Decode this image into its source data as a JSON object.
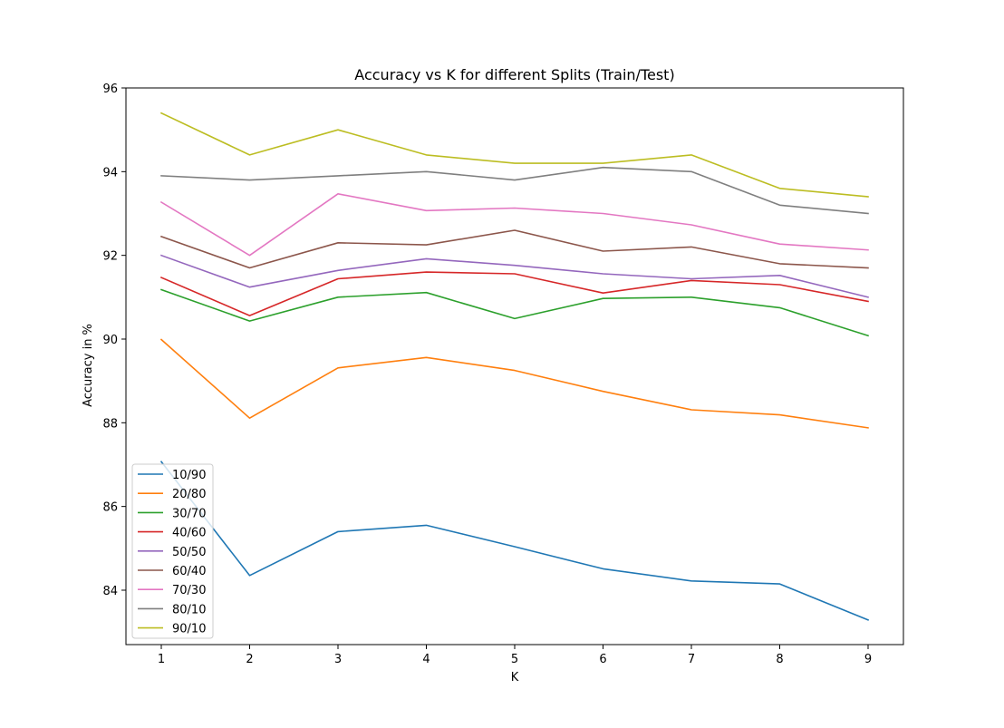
{
  "chart_data": {
    "type": "line",
    "title": "Accuracy vs K for different Splits (Train/Test)",
    "xlabel": "K",
    "ylabel": "Accuracy in %",
    "x": [
      1,
      2,
      3,
      4,
      5,
      6,
      7,
      8,
      9
    ],
    "x_ticks": [
      "1",
      "2",
      "3",
      "4",
      "5",
      "6",
      "7",
      "8",
      "9"
    ],
    "y_ticks": [
      "84",
      "86",
      "88",
      "90",
      "92",
      "94",
      "96"
    ],
    "xlim": [
      0.6,
      9.4
    ],
    "ylim": [
      82.7,
      96
    ],
    "grid": false,
    "legend_position": "lower-left",
    "series": [
      {
        "name": "10/90",
        "color": "#1f77b4",
        "values": [
          87.07,
          84.35,
          85.4,
          85.55,
          85.04,
          84.51,
          84.22,
          84.15,
          83.29
        ]
      },
      {
        "name": "20/80",
        "color": "#ff7f0e",
        "values": [
          89.99,
          88.11,
          89.31,
          89.56,
          89.25,
          88.75,
          88.31,
          88.19,
          87.88
        ]
      },
      {
        "name": "30/70",
        "color": "#2ca02c",
        "values": [
          91.18,
          90.43,
          91.0,
          91.11,
          90.49,
          90.97,
          91.0,
          90.75,
          90.08
        ]
      },
      {
        "name": "40/60",
        "color": "#d62728",
        "values": [
          91.47,
          90.56,
          91.44,
          91.6,
          91.56,
          91.1,
          91.4,
          91.3,
          90.9
        ]
      },
      {
        "name": "50/50",
        "color": "#9467bd",
        "values": [
          92.0,
          91.24,
          91.64,
          91.92,
          91.76,
          91.56,
          91.44,
          91.52,
          91.0
        ]
      },
      {
        "name": "60/40",
        "color": "#8c564b",
        "values": [
          92.45,
          91.7,
          92.3,
          92.25,
          92.6,
          92.1,
          92.2,
          91.8,
          91.7
        ]
      },
      {
        "name": "70/30",
        "color": "#e377c2",
        "values": [
          93.27,
          92.0,
          93.47,
          93.07,
          93.13,
          93.0,
          92.73,
          92.27,
          92.13
        ]
      },
      {
        "name": "80/10",
        "color": "#7f7f7f",
        "values": [
          93.9,
          93.8,
          93.9,
          94.0,
          93.8,
          94.1,
          94.0,
          93.2,
          93.0
        ]
      },
      {
        "name": "90/10",
        "color": "#bcbd22",
        "values": [
          95.4,
          94.4,
          95.0,
          94.4,
          94.2,
          94.2,
          94.4,
          93.6,
          93.4
        ]
      }
    ]
  }
}
